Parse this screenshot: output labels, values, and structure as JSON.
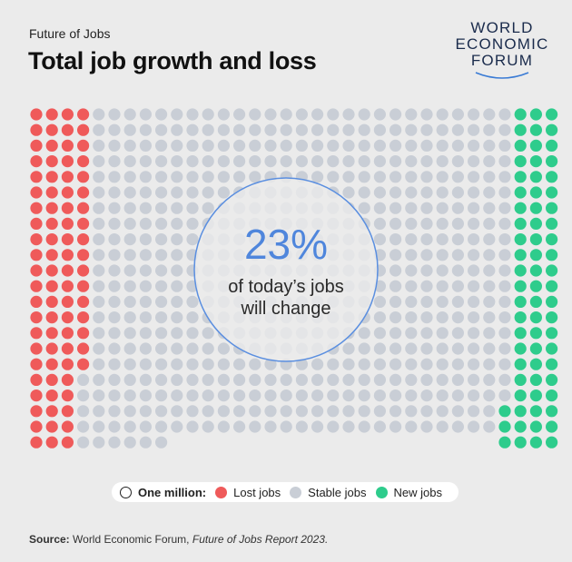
{
  "header": {
    "kicker": "Future of Jobs",
    "title": "Total job growth and loss"
  },
  "logo": {
    "line1": "WORLD",
    "line2": "ECONOMIC",
    "line3": "FORUM"
  },
  "callout": {
    "value": "23%",
    "line1": "of today’s jobs",
    "line2": "will change"
  },
  "legend": {
    "unit_label": "One million:",
    "items": [
      {
        "label": "Lost jobs",
        "color": "#ef5a5a"
      },
      {
        "label": "Stable jobs",
        "color": "#c9ced6"
      },
      {
        "label": "New jobs",
        "color": "#2ecc8c"
      }
    ]
  },
  "source": {
    "label": "Source:",
    "text": "World Economic Forum,",
    "report": "Future of Jobs Report 2023."
  },
  "colors": {
    "lost": "#ef5a5a",
    "stable": "#c9ced6",
    "new": "#2ecc8c",
    "callout_ring": "#5b8fe0",
    "callout_text": "#4f86dc"
  },
  "chart_data": {
    "type": "waffle",
    "unit": "One million",
    "rows": 22,
    "columns": 34,
    "series": [
      {
        "name": "Lost jobs",
        "value": 83
      },
      {
        "name": "Stable jobs",
        "value": 575
      },
      {
        "name": "New jobs",
        "value": 69
      }
    ]
  }
}
